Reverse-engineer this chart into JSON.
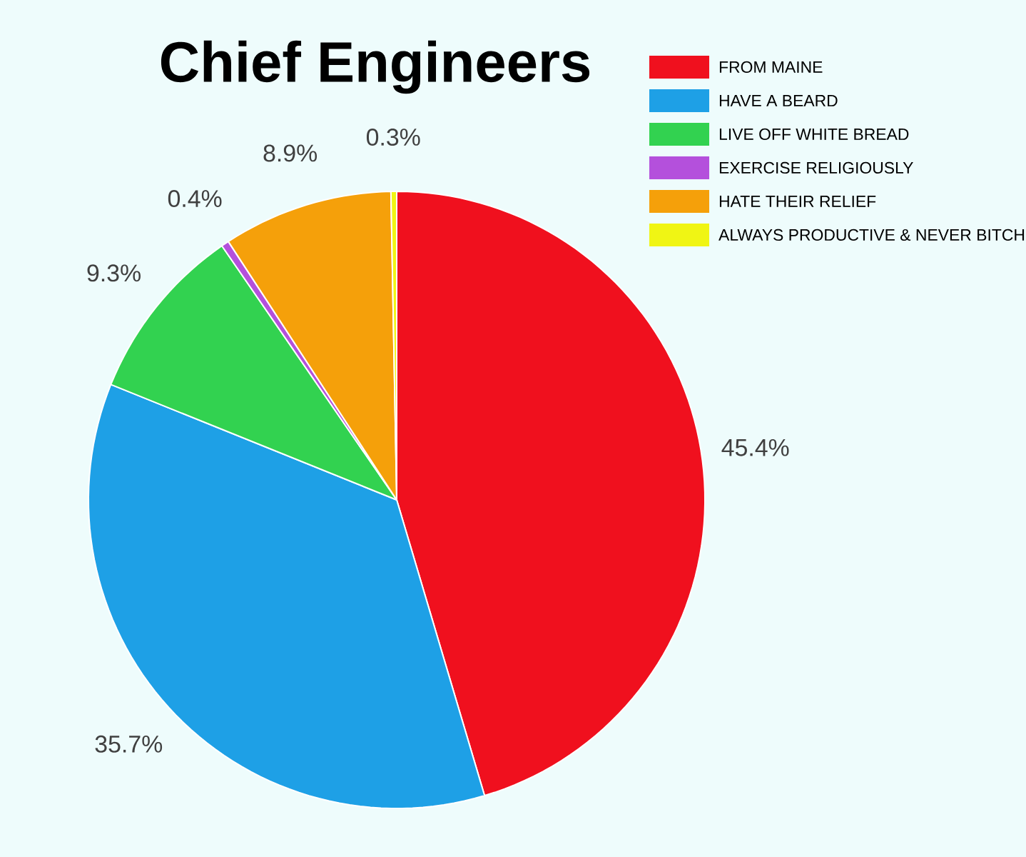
{
  "chart_data": {
    "type": "pie",
    "title": "Chief Engineers",
    "categories": [
      "FROM MAINE",
      "HAVE A BEARD",
      "LIVE OFF WHITE BREAD",
      "EXERCISE RELIGIOUSLY",
      "HATE THEIR RELIEF",
      "ALWAYS PRODUCTIVE & NEVER BITCH"
    ],
    "values": [
      45.4,
      35.7,
      9.3,
      0.4,
      8.9,
      0.3
    ],
    "value_labels": [
      "45.4%",
      "35.7%",
      "9.3%",
      "0.4%",
      "8.9%",
      "0.3%"
    ],
    "colors": [
      "#f0101e",
      "#1ea0e6",
      "#32d250",
      "#b450dc",
      "#f5a00a",
      "#f0f514"
    ],
    "legend": "top right"
  }
}
